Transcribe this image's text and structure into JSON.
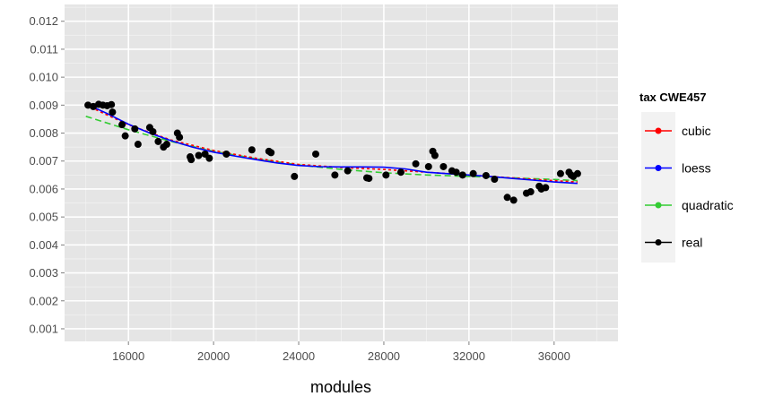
{
  "chart_data": {
    "type": "scatter",
    "title": "",
    "xlabel": "modules",
    "ylabel": "",
    "xlim": [
      13000,
      39000
    ],
    "ylim": [
      0.00055,
      0.0126
    ],
    "x_ticks": [
      16000,
      20000,
      24000,
      28000,
      32000,
      36000
    ],
    "x_tick_labels": [
      "16000",
      "20000",
      "24000",
      "28000",
      "32000",
      "36000"
    ],
    "y_ticks": [
      0.001,
      0.002,
      0.003,
      0.004,
      0.005,
      0.006,
      0.007,
      0.008,
      0.009,
      0.01,
      0.011,
      0.012
    ],
    "y_tick_labels": [
      "0.001",
      "0.002",
      "0.003",
      "0.004",
      "0.005",
      "0.006",
      "0.007",
      "0.008",
      "0.009",
      "0.010",
      "0.011",
      "0.012"
    ],
    "grid": true,
    "legend": {
      "title": "tax CWE457",
      "position": "right",
      "entries": [
        "cubic",
        "loess",
        "quadratic",
        "real"
      ]
    },
    "series": [
      {
        "name": "real",
        "color": "#000000",
        "kind": "points",
        "x": [
          14100,
          14350,
          14600,
          14800,
          15000,
          15200,
          15250,
          15700,
          15850,
          16300,
          16450,
          17000,
          17150,
          17400,
          17650,
          17800,
          18300,
          18400,
          18900,
          18950,
          19300,
          19600,
          19800,
          20600,
          21800,
          22600,
          22700,
          23800,
          24800,
          25700,
          26300,
          27200,
          27300,
          28100,
          28800,
          29500,
          30100,
          30300,
          30400,
          30800,
          31200,
          31400,
          31700,
          32200,
          32800,
          33200,
          33800,
          34100,
          34700,
          34900,
          35300,
          35400,
          35600,
          36300,
          36700,
          36800,
          36900,
          37100
        ],
        "y": [
          0.009,
          0.00895,
          0.00903,
          0.009,
          0.00898,
          0.00902,
          0.00875,
          0.0083,
          0.0079,
          0.00815,
          0.0076,
          0.0082,
          0.00805,
          0.0077,
          0.0075,
          0.0076,
          0.008,
          0.00785,
          0.00715,
          0.00705,
          0.0072,
          0.00725,
          0.0071,
          0.00725,
          0.0074,
          0.00735,
          0.0073,
          0.00645,
          0.00725,
          0.0065,
          0.00665,
          0.0064,
          0.00638,
          0.0065,
          0.0066,
          0.0069,
          0.0068,
          0.00735,
          0.0072,
          0.0068,
          0.00665,
          0.0066,
          0.0065,
          0.00655,
          0.00648,
          0.00635,
          0.0057,
          0.0056,
          0.00585,
          0.0059,
          0.0061,
          0.006,
          0.00605,
          0.00655,
          0.0066,
          0.0065,
          0.00645,
          0.00655
        ]
      },
      {
        "name": "cubic",
        "color": "#ff0000",
        "kind": "line",
        "dash": "3,3",
        "x": [
          14000,
          16000,
          18000,
          20000,
          22000,
          24000,
          26000,
          28000,
          30000,
          32000,
          34000,
          36000,
          37100
        ],
        "y": [
          0.009,
          0.0083,
          0.00775,
          0.00738,
          0.0071,
          0.00688,
          0.00677,
          0.0067,
          0.0066,
          0.0065,
          0.0064,
          0.0063,
          0.00625
        ]
      },
      {
        "name": "loess",
        "color": "#0000ff",
        "kind": "line",
        "dash": "",
        "x": [
          14000,
          15000,
          16000,
          17000,
          18000,
          19000,
          20000,
          21000,
          22000,
          23000,
          24000,
          25000,
          26000,
          27000,
          28000,
          29000,
          30000,
          31000,
          32000,
          33000,
          34000,
          35000,
          36000,
          37100
        ],
        "y": [
          0.00905,
          0.0087,
          0.00832,
          0.008,
          0.00773,
          0.0075,
          0.00732,
          0.00718,
          0.00705,
          0.00693,
          0.00684,
          0.0068,
          0.00679,
          0.00679,
          0.00678,
          0.00672,
          0.0066,
          0.00655,
          0.0065,
          0.00645,
          0.00638,
          0.00632,
          0.00625,
          0.0062
        ]
      },
      {
        "name": "quadratic",
        "color": "#33cc33",
        "kind": "line",
        "dash": "7,4",
        "x": [
          14000,
          16000,
          18000,
          20000,
          22000,
          24000,
          26000,
          28000,
          30000,
          32000,
          34000,
          36000,
          37100
        ],
        "y": [
          0.0086,
          0.00812,
          0.0077,
          0.00735,
          0.00708,
          0.00686,
          0.0067,
          0.00658,
          0.0065,
          0.00645,
          0.0064,
          0.00634,
          0.0063
        ]
      }
    ]
  }
}
